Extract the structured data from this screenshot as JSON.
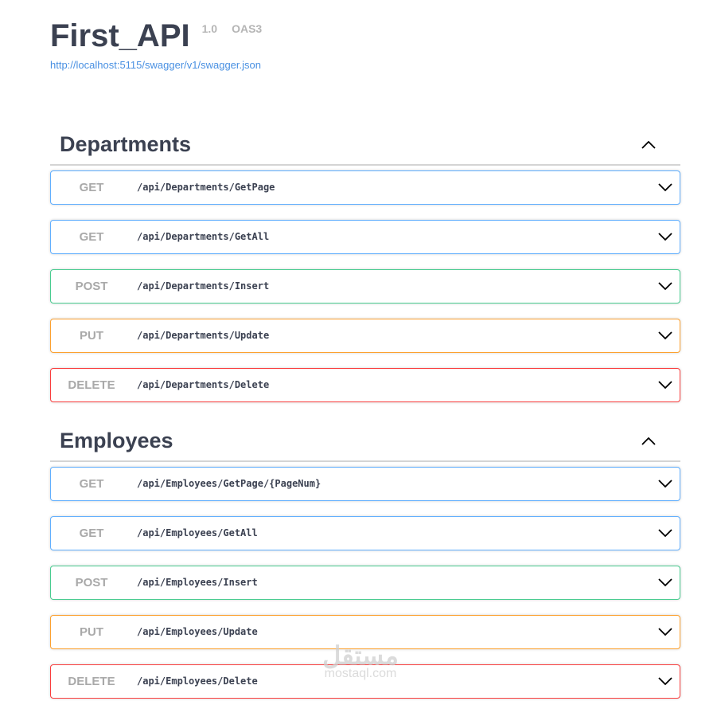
{
  "info": {
    "title": "First_API",
    "version": "1.0",
    "oas": "OAS3",
    "spec_url": "http://localhost:5115/swagger/v1/swagger.json"
  },
  "sections": [
    {
      "name": "Departments",
      "operations": [
        {
          "method": "GET",
          "path": "/api/Departments/GetPage"
        },
        {
          "method": "GET",
          "path": "/api/Departments/GetAll"
        },
        {
          "method": "POST",
          "path": "/api/Departments/Insert"
        },
        {
          "method": "PUT",
          "path": "/api/Departments/Update"
        },
        {
          "method": "DELETE",
          "path": "/api/Departments/Delete"
        }
      ]
    },
    {
      "name": "Employees",
      "operations": [
        {
          "method": "GET",
          "path": "/api/Employees/GetPage/{PageNum}"
        },
        {
          "method": "GET",
          "path": "/api/Employees/GetAll"
        },
        {
          "method": "POST",
          "path": "/api/Employees/Insert"
        },
        {
          "method": "PUT",
          "path": "/api/Employees/Update"
        },
        {
          "method": "DELETE",
          "path": "/api/Employees/Delete"
        }
      ]
    }
  ],
  "watermark": {
    "arabic": "مستقل",
    "latin": "mostaql.com"
  },
  "colors": {
    "get": "#61affe",
    "post": "#49cc90",
    "put": "#fca130",
    "delete": "#f93e3e",
    "method_text": "#a9a9a9",
    "link": "#4990e2"
  },
  "icons": {
    "section_toggle": "chevron-up-icon",
    "operation_expand": "chevron-down-icon"
  }
}
